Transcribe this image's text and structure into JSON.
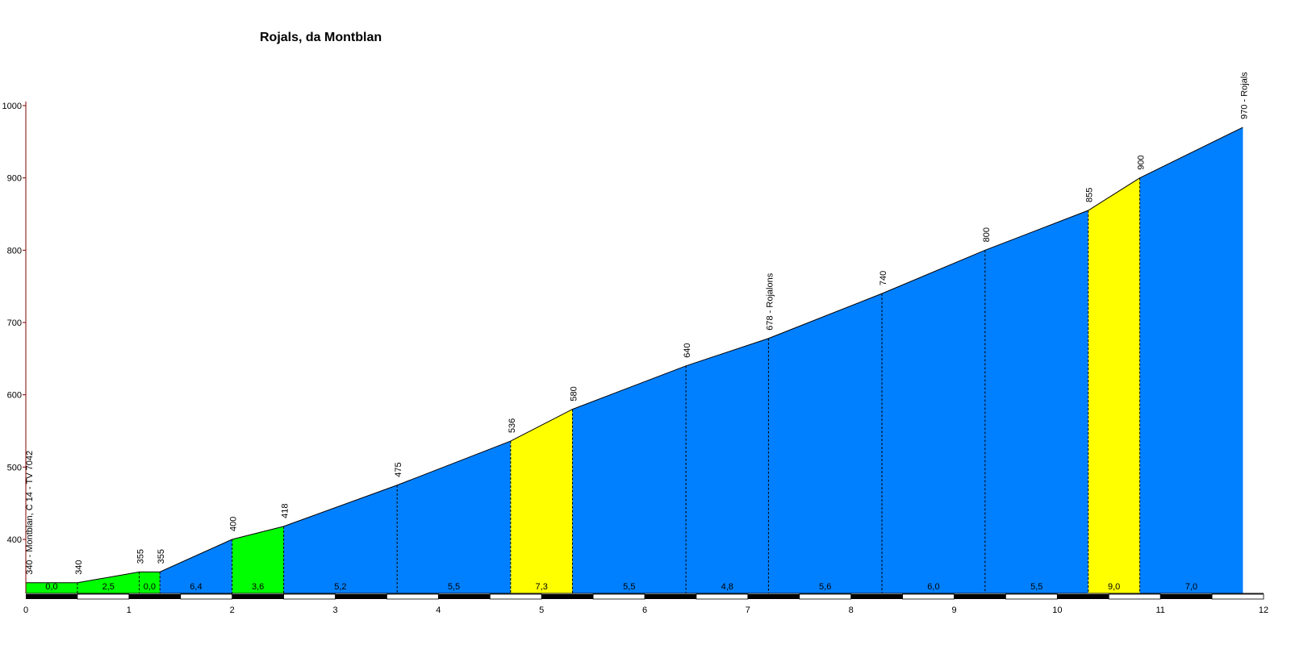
{
  "chart_data": {
    "type": "area",
    "title": "Rojals, da Montblan",
    "xlabel": "",
    "ylabel": "",
    "xlim": [
      0,
      12
    ],
    "ylim": [
      320,
      1000
    ],
    "x_ticks": [
      "0",
      "1",
      "2",
      "3",
      "4",
      "5",
      "6",
      "7",
      "8",
      "9",
      "10",
      "11",
      "12"
    ],
    "y_ticks": [
      "400",
      "500",
      "600",
      "700",
      "800",
      "900",
      "1000"
    ],
    "grid": false,
    "segments": [
      {
        "x0": 0.0,
        "x1": 0.5,
        "y0": 340,
        "y1": 340,
        "gradient": "0,0",
        "color": "#00ff00"
      },
      {
        "x0": 0.5,
        "x1": 1.1,
        "y0": 340,
        "y1": 355,
        "gradient": "2,5",
        "color": "#00ff00"
      },
      {
        "x0": 1.1,
        "x1": 1.3,
        "y0": 355,
        "y1": 355,
        "gradient": "0,0",
        "color": "#00ff00"
      },
      {
        "x0": 1.3,
        "x1": 2.0,
        "y0": 355,
        "y1": 400,
        "gradient": "6,4",
        "color": "#0080ff"
      },
      {
        "x0": 2.0,
        "x1": 2.5,
        "y0": 400,
        "y1": 418,
        "gradient": "3,6",
        "color": "#00ff00"
      },
      {
        "x0": 2.5,
        "x1": 3.6,
        "y0": 418,
        "y1": 475,
        "gradient": "5,2",
        "color": "#0080ff"
      },
      {
        "x0": 3.6,
        "x1": 4.7,
        "y0": 475,
        "y1": 536,
        "gradient": "5,5",
        "color": "#0080ff"
      },
      {
        "x0": 4.7,
        "x1": 5.3,
        "y0": 536,
        "y1": 580,
        "gradient": "7,3",
        "color": "#ffff00"
      },
      {
        "x0": 5.3,
        "x1": 6.4,
        "y0": 580,
        "y1": 640,
        "gradient": "5,5",
        "color": "#0080ff"
      },
      {
        "x0": 6.4,
        "x1": 7.2,
        "y0": 640,
        "y1": 678,
        "gradient": "4,8",
        "color": "#0080ff"
      },
      {
        "x0": 7.2,
        "x1": 8.3,
        "y0": 678,
        "y1": 740,
        "gradient": "5,6",
        "color": "#0080ff"
      },
      {
        "x0": 8.3,
        "x1": 9.3,
        "y0": 740,
        "y1": 800,
        "gradient": "6,0",
        "color": "#0080ff"
      },
      {
        "x0": 9.3,
        "x1": 10.3,
        "y0": 800,
        "y1": 855,
        "gradient": "5,5",
        "color": "#0080ff"
      },
      {
        "x0": 10.3,
        "x1": 10.8,
        "y0": 855,
        "y1": 900,
        "gradient": "9,0",
        "color": "#ffff00"
      },
      {
        "x0": 10.8,
        "x1": 11.8,
        "y0": 900,
        "y1": 970,
        "gradient": "7,0",
        "color": "#0080ff"
      }
    ],
    "point_labels": [
      {
        "x": 0.0,
        "y": 340,
        "label": "340 - Montblan, C 14 - TV 7042"
      },
      {
        "x": 0.5,
        "y": 340,
        "label": "340"
      },
      {
        "x": 1.1,
        "y": 355,
        "label": "355"
      },
      {
        "x": 1.3,
        "y": 355,
        "label": "355"
      },
      {
        "x": 2.0,
        "y": 400,
        "label": "400"
      },
      {
        "x": 2.5,
        "y": 418,
        "label": "418"
      },
      {
        "x": 3.6,
        "y": 475,
        "label": "475"
      },
      {
        "x": 4.7,
        "y": 536,
        "label": "536"
      },
      {
        "x": 5.3,
        "y": 580,
        "label": "580"
      },
      {
        "x": 6.4,
        "y": 640,
        "label": "640"
      },
      {
        "x": 7.2,
        "y": 678,
        "label": "678 - Rojalons"
      },
      {
        "x": 8.3,
        "y": 740,
        "label": "740"
      },
      {
        "x": 9.3,
        "y": 800,
        "label": "800"
      },
      {
        "x": 10.3,
        "y": 855,
        "label": "855"
      },
      {
        "x": 10.8,
        "y": 900,
        "label": "900"
      },
      {
        "x": 11.8,
        "y": 970,
        "label": "970 - Rojals"
      }
    ],
    "colors": {
      "easy": "#00ff00",
      "medium": "#0080ff",
      "hard": "#ffff00",
      "axis": "#800000",
      "outline": "#000000"
    }
  }
}
